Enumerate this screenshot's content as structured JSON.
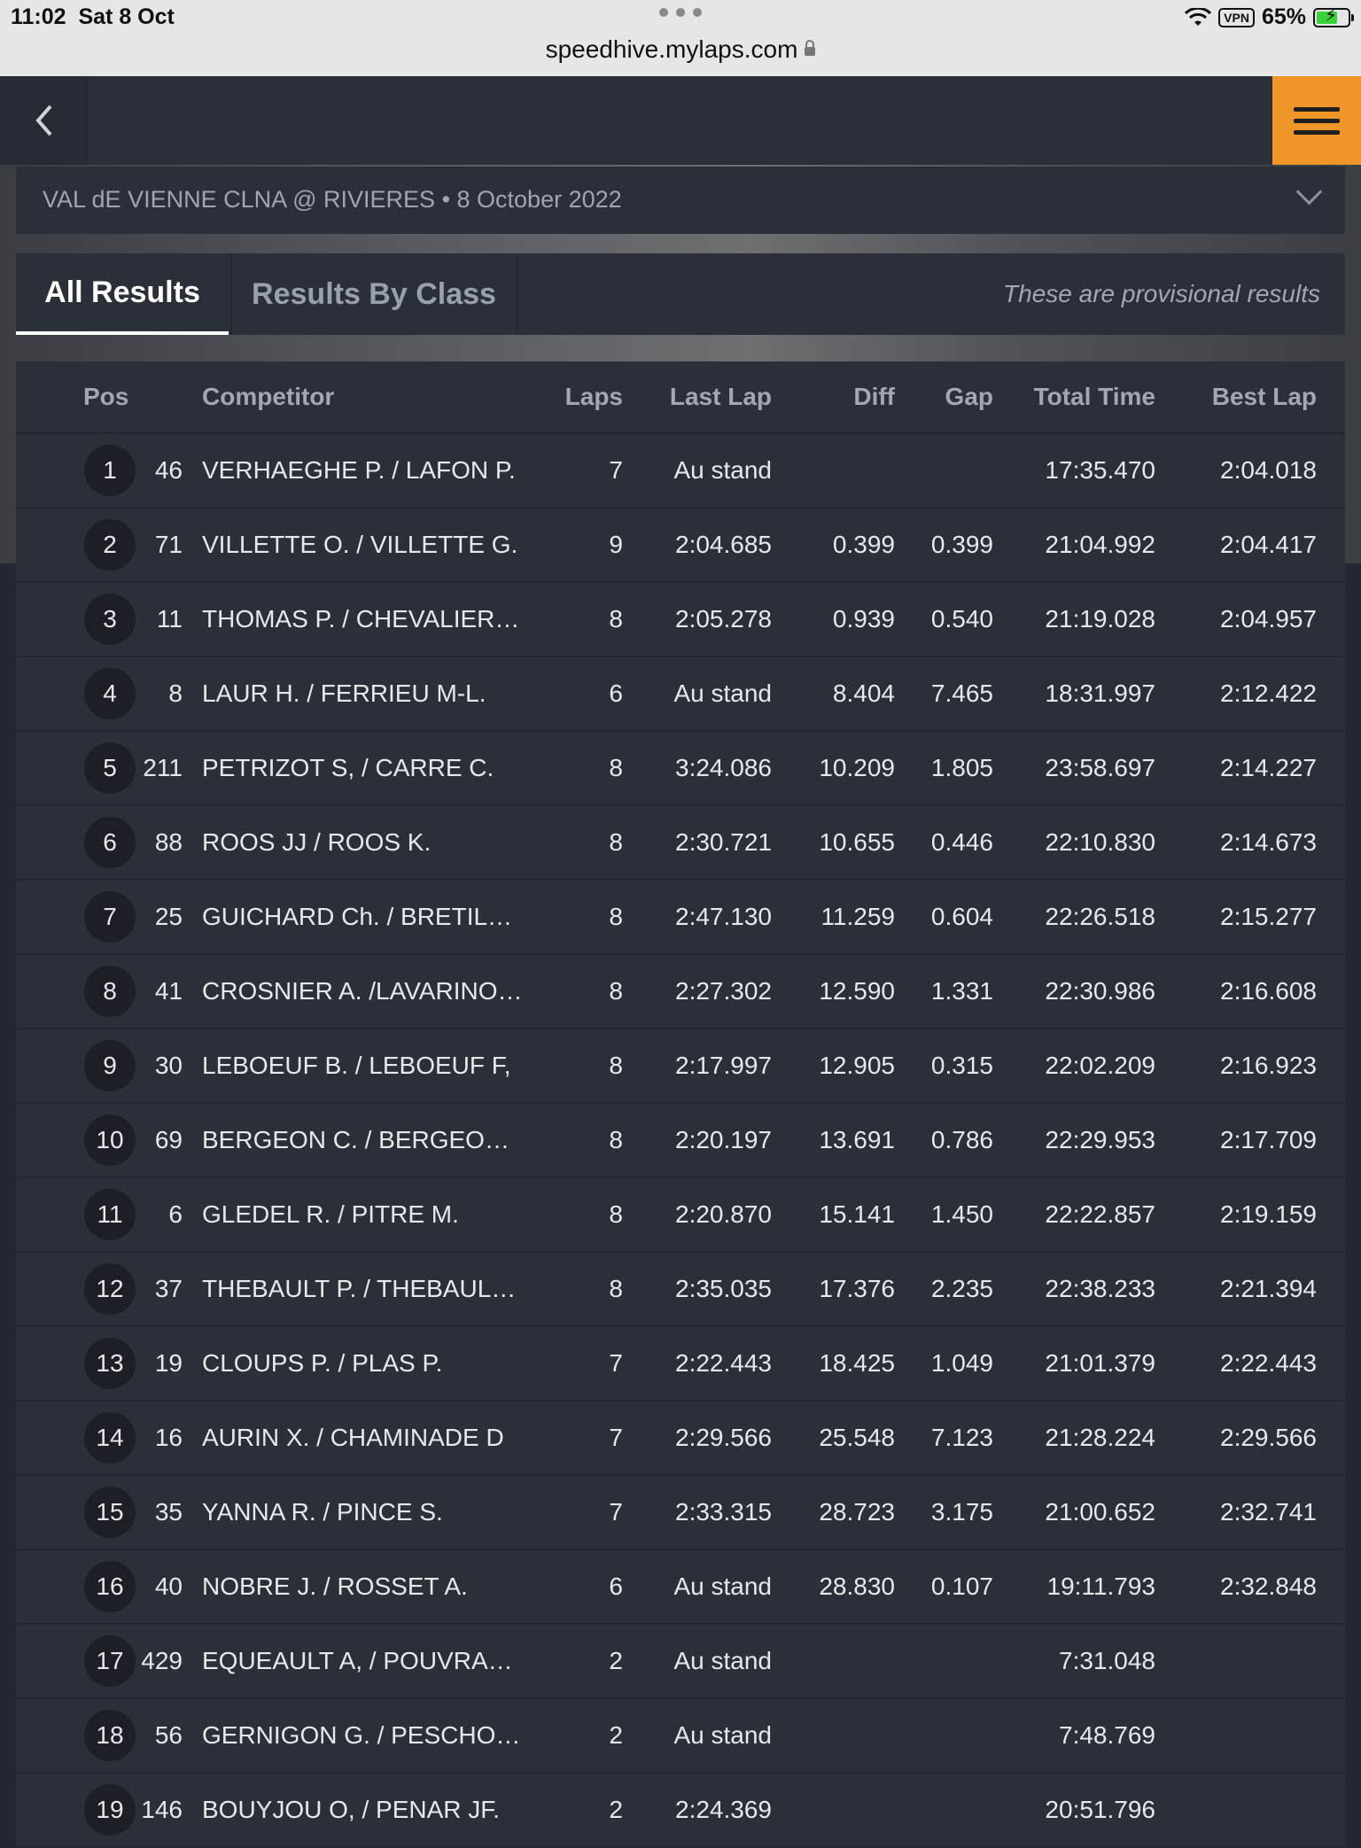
{
  "status_bar": {
    "time": "11:02",
    "date": "Sat 8 Oct",
    "vpn": "VPN",
    "battery": "65%",
    "url": "speedhive.mylaps.com"
  },
  "event": {
    "title": "VAL dE VIENNE CLNA @ RIVIERES • 8 October 2022"
  },
  "tabs": [
    {
      "label": "All Results",
      "active": true
    },
    {
      "label": "Results By Class",
      "active": false
    }
  ],
  "provisional_note": "These are provisional results",
  "table": {
    "headers": {
      "pos": "Pos",
      "competitor": "Competitor",
      "laps": "Laps",
      "last_lap": "Last Lap",
      "diff": "Diff",
      "gap": "Gap",
      "total_time": "Total Time",
      "best_lap": "Best Lap"
    },
    "rows": [
      {
        "pos": "1",
        "num": "46",
        "competitor": "VERHAEGHE P. / LAFON P.",
        "laps": "7",
        "last_lap": "Au stand",
        "diff": "",
        "gap": "",
        "total": "17:35.470",
        "best": "2:04.018"
      },
      {
        "pos": "2",
        "num": "71",
        "competitor": "VILLETTE O. / VILLETTE G.",
        "laps": "9",
        "last_lap": "2:04.685",
        "diff": "0.399",
        "gap": "0.399",
        "total": "21:04.992",
        "best": "2:04.417"
      },
      {
        "pos": "3",
        "num": "11",
        "competitor": "THOMAS P. / CHEVALIER…",
        "laps": "8",
        "last_lap": "2:05.278",
        "diff": "0.939",
        "gap": "0.540",
        "total": "21:19.028",
        "best": "2:04.957"
      },
      {
        "pos": "4",
        "num": "8",
        "competitor": "LAUR H. / FERRIEU M-L.",
        "laps": "6",
        "last_lap": "Au stand",
        "diff": "8.404",
        "gap": "7.465",
        "total": "18:31.997",
        "best": "2:12.422"
      },
      {
        "pos": "5",
        "num": "211",
        "competitor": "PETRIZOT S, / CARRE C.",
        "laps": "8",
        "last_lap": "3:24.086",
        "diff": "10.209",
        "gap": "1.805",
        "total": "23:58.697",
        "best": "2:14.227"
      },
      {
        "pos": "6",
        "num": "88",
        "competitor": "ROOS JJ / ROOS K.",
        "laps": "8",
        "last_lap": "2:30.721",
        "diff": "10.655",
        "gap": "0.446",
        "total": "22:10.830",
        "best": "2:14.673"
      },
      {
        "pos": "7",
        "num": "25",
        "competitor": "GUICHARD Ch. / BRETIL…",
        "laps": "8",
        "last_lap": "2:47.130",
        "diff": "11.259",
        "gap": "0.604",
        "total": "22:26.518",
        "best": "2:15.277"
      },
      {
        "pos": "8",
        "num": "41",
        "competitor": "CROSNIER A. /LAVARINO…",
        "laps": "8",
        "last_lap": "2:27.302",
        "diff": "12.590",
        "gap": "1.331",
        "total": "22:30.986",
        "best": "2:16.608"
      },
      {
        "pos": "9",
        "num": "30",
        "competitor": "LEBOEUF B. / LEBOEUF F,",
        "laps": "8",
        "last_lap": "2:17.997",
        "diff": "12.905",
        "gap": "0.315",
        "total": "22:02.209",
        "best": "2:16.923"
      },
      {
        "pos": "10",
        "num": "69",
        "competitor": "BERGEON C. / BERGEO…",
        "laps": "8",
        "last_lap": "2:20.197",
        "diff": "13.691",
        "gap": "0.786",
        "total": "22:29.953",
        "best": "2:17.709"
      },
      {
        "pos": "11",
        "num": "6",
        "competitor": "GLEDEL R. / PITRE M.",
        "laps": "8",
        "last_lap": "2:20.870",
        "diff": "15.141",
        "gap": "1.450",
        "total": "22:22.857",
        "best": "2:19.159"
      },
      {
        "pos": "12",
        "num": "37",
        "competitor": "THEBAULT P. / THEBAUL…",
        "laps": "8",
        "last_lap": "2:35.035",
        "diff": "17.376",
        "gap": "2.235",
        "total": "22:38.233",
        "best": "2:21.394"
      },
      {
        "pos": "13",
        "num": "19",
        "competitor": "CLOUPS P. / PLAS P.",
        "laps": "7",
        "last_lap": "2:22.443",
        "diff": "18.425",
        "gap": "1.049",
        "total": "21:01.379",
        "best": "2:22.443"
      },
      {
        "pos": "14",
        "num": "16",
        "competitor": "AURIN X. / CHAMINADE D",
        "laps": "7",
        "last_lap": "2:29.566",
        "diff": "25.548",
        "gap": "7.123",
        "total": "21:28.224",
        "best": "2:29.566"
      },
      {
        "pos": "15",
        "num": "35",
        "competitor": "YANNA R. / PINCE S.",
        "laps": "7",
        "last_lap": "2:33.315",
        "diff": "28.723",
        "gap": "3.175",
        "total": "21:00.652",
        "best": "2:32.741"
      },
      {
        "pos": "16",
        "num": "40",
        "competitor": "NOBRE J. / ROSSET A.",
        "laps": "6",
        "last_lap": "Au stand",
        "diff": "28.830",
        "gap": "0.107",
        "total": "19:11.793",
        "best": "2:32.848"
      },
      {
        "pos": "17",
        "num": "429",
        "competitor": "EQUEAULT A, / POUVRA…",
        "laps": "2",
        "last_lap": "Au stand",
        "diff": "",
        "gap": "",
        "total": "7:31.048",
        "best": ""
      },
      {
        "pos": "18",
        "num": "56",
        "competitor": "GERNIGON G. / PESCHO…",
        "laps": "2",
        "last_lap": "Au stand",
        "diff": "",
        "gap": "",
        "total": "7:48.769",
        "best": ""
      },
      {
        "pos": "19",
        "num": "146",
        "competitor": "BOUYJOU O, / PENAR JF.",
        "laps": "2",
        "last_lap": "2:24.369",
        "diff": "",
        "gap": "",
        "total": "20:51.796",
        "best": ""
      }
    ]
  },
  "colors": {
    "page_bg": "#23272f",
    "panel_bg": "#2b2f38",
    "accent": "#f0952a"
  },
  "icons": {
    "back": "chevron-left-icon",
    "menu": "hamburger-menu-icon",
    "dropdown": "chevron-down-icon",
    "lock": "lock-icon"
  }
}
